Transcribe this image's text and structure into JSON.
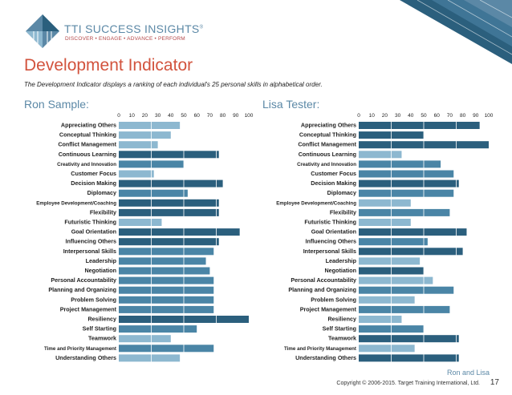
{
  "brand": {
    "name": "TTI SUCCESS INSIGHTS",
    "reg": "®",
    "tagline": "DISCOVER • ENGAGE • ADVANCE • PERFORM"
  },
  "page": {
    "title": "Development Indicator",
    "subtitle": "The Development Indicator displays a ranking of each individual's 25 personal skills in alphabetical order."
  },
  "footer": {
    "names": "Ron and Lisa",
    "copyright": "Copyright © 2006-2015. Target Training International, Ltd.",
    "page_number": "17"
  },
  "colors": {
    "title": "#d2533d",
    "brand": "#5b88a6",
    "dark_bar": "#2b5f7d",
    "mid_bar": "#4a85a6",
    "light_bar": "#8db8d0"
  },
  "chart_data": [
    {
      "type": "bar",
      "orientation": "horizontal",
      "title": "Ron Sample:",
      "xlim": [
        0,
        100
      ],
      "x_ticks": [
        "0",
        "10",
        "20",
        "30",
        "40",
        "50",
        "60",
        "70",
        "80",
        "90",
        "100"
      ],
      "categories": [
        "Appreciating Others",
        "Conceptual Thinking",
        "Conflict Management",
        "Continuous Learning",
        "Creativity and Innovation",
        "Customer Focus",
        "Decision Making",
        "Diplomacy",
        "Employee Development/Coaching",
        "Flexibility",
        "Futuristic Thinking",
        "Goal Orientation",
        "Influencing Others",
        "Interpersonal Skills",
        "Leadership",
        "Negotiation",
        "Personal Accountability",
        "Planning and Organizing",
        "Problem Solving",
        "Project Management",
        "Resiliency",
        "Self Starting",
        "Teamwork",
        "Time and Priority Management",
        "Understanding Others"
      ],
      "values": [
        47,
        40,
        30,
        77,
        50,
        27,
        80,
        53,
        77,
        77,
        33,
        93,
        77,
        73,
        67,
        70,
        73,
        73,
        73,
        73,
        100,
        60,
        40,
        73,
        47
      ],
      "tone": [
        "light",
        "light",
        "light",
        "dark",
        "mid",
        "light",
        "dark",
        "mid",
        "dark",
        "dark",
        "light",
        "dark",
        "dark",
        "mid",
        "mid",
        "mid",
        "mid",
        "mid",
        "mid",
        "mid",
        "dark",
        "mid",
        "light",
        "mid",
        "light"
      ]
    },
    {
      "type": "bar",
      "orientation": "horizontal",
      "title": "Lisa Tester:",
      "xlim": [
        0,
        100
      ],
      "x_ticks": [
        "0",
        "10",
        "20",
        "30",
        "40",
        "50",
        "60",
        "70",
        "80",
        "90",
        "100"
      ],
      "categories": [
        "Appreciating Others",
        "Conceptual Thinking",
        "Conflict Management",
        "Continuous Learning",
        "Creativity and Innovation",
        "Customer Focus",
        "Decision Making",
        "Diplomacy",
        "Employee Development/Coaching",
        "Flexibility",
        "Futuristic Thinking",
        "Goal Orientation",
        "Influencing Others",
        "Interpersonal Skills",
        "Leadership",
        "Negotiation",
        "Personal Accountability",
        "Planning and Organizing",
        "Problem Solving",
        "Project Management",
        "Resiliency",
        "Self Starting",
        "Teamwork",
        "Time and Priority Management",
        "Understanding Others"
      ],
      "values": [
        93,
        50,
        100,
        33,
        63,
        73,
        77,
        73,
        40,
        70,
        40,
        83,
        53,
        80,
        47,
        50,
        57,
        73,
        43,
        70,
        33,
        50,
        77,
        43,
        77
      ],
      "tone": [
        "dark",
        "dark",
        "dark",
        "light",
        "mid",
        "mid",
        "dark",
        "mid",
        "light",
        "mid",
        "light",
        "dark",
        "mid",
        "dark",
        "light",
        "dark",
        "light",
        "mid",
        "light",
        "mid",
        "light",
        "mid",
        "dark",
        "light",
        "dark"
      ]
    }
  ]
}
